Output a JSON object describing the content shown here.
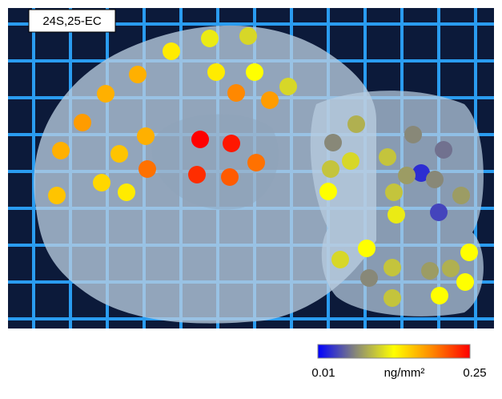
{
  "image": {
    "label": "24S,25-EC",
    "spots": [
      0.14,
      0.12,
      0.11,
      0.17,
      0.14,
      0.13,
      0.11,
      0.17,
      0.19,
      0.18,
      0.18,
      0.17,
      0.25,
      0.24,
      0.17,
      0.16,
      0.2,
      0.2,
      0.23,
      0.21,
      0.15,
      0.14,
      0.16,
      0.09,
      0.07,
      0.07,
      0.06,
      0.1,
      0.11,
      0.1,
      0.03,
      0.08,
      0.07,
      0.1,
      0.13,
      0.08,
      0.04,
      0.12,
      0.13,
      0.13,
      0.11,
      0.1,
      0.08,
      0.09,
      0.07,
      0.13,
      0.13,
      0.1
    ],
    "colorbar": {
      "min": 0.01,
      "max": 0.25,
      "unit": "ng/mm²"
    }
  }
}
